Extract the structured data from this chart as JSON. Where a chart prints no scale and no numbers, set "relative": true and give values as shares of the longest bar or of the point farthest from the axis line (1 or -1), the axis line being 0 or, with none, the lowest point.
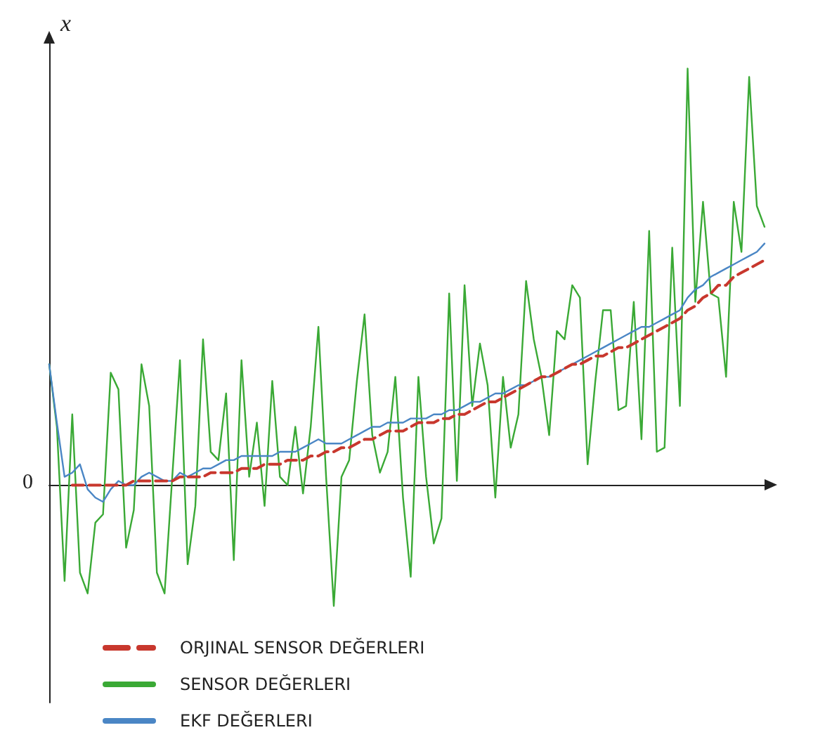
{
  "chart_data": {
    "type": "line",
    "relative": true,
    "ylabel": "x",
    "grid": false,
    "legend": "bottom left",
    "marker": "none",
    "annotations": [
      "0"
    ],
    "categories": [
      null,
      null,
      null,
      null,
      null,
      null,
      null,
      null,
      null,
      null,
      null,
      null,
      null,
      null,
      null,
      null,
      null,
      null,
      null,
      null,
      null,
      null,
      null,
      null,
      null,
      null,
      null,
      null,
      null,
      null,
      null,
      null,
      null,
      null,
      null,
      null,
      null,
      null,
      null,
      null,
      null,
      null,
      null,
      null,
      null,
      null,
      null,
      null,
      null,
      null,
      null,
      null,
      null,
      null,
      null,
      null,
      null,
      null,
      null,
      null,
      null,
      null,
      null,
      null,
      null,
      null,
      null,
      null,
      null,
      null,
      null,
      null,
      null,
      null,
      null,
      null,
      null,
      null,
      null,
      null,
      null,
      null,
      null,
      null,
      null,
      null,
      null,
      null,
      null,
      null,
      null,
      null,
      null,
      null
    ],
    "series": [
      {
        "name": "ORJINAL SENSOR DEĞERLERI",
        "color": "#c8372d",
        "line_style": "dashed",
        "values": [
          null,
          null,
          null,
          0.0,
          0.0,
          0.0,
          0.0,
          0.0,
          0.0,
          0.0,
          0.0,
          0.01,
          0.01,
          0.01,
          0.01,
          0.01,
          0.01,
          0.02,
          0.02,
          0.02,
          0.02,
          0.03,
          0.03,
          0.03,
          0.03,
          0.04,
          0.04,
          0.04,
          0.05,
          0.05,
          0.05,
          0.06,
          0.06,
          0.06,
          0.07,
          0.07,
          0.08,
          0.08,
          0.09,
          0.09,
          0.1,
          0.11,
          0.11,
          0.12,
          0.13,
          0.13,
          0.13,
          0.14,
          0.15,
          0.15,
          0.15,
          0.16,
          0.16,
          0.17,
          0.17,
          0.18,
          0.19,
          0.2,
          0.2,
          0.21,
          0.22,
          0.23,
          0.24,
          0.25,
          0.26,
          0.26,
          0.27,
          0.28,
          0.29,
          0.29,
          0.3,
          0.31,
          0.31,
          0.32,
          0.33,
          0.33,
          0.34,
          0.35,
          0.36,
          0.37,
          0.38,
          0.39,
          0.4,
          0.42,
          0.43,
          0.45,
          0.46,
          0.48,
          0.48,
          0.5,
          0.51,
          0.52,
          0.53,
          0.54
        ]
      },
      {
        "name": "SENSOR DEĞERLERI",
        "color": "#3aa935",
        "line_style": "solid",
        "values": [
          0.29,
          0.14,
          -0.23,
          0.17,
          -0.21,
          -0.26,
          -0.09,
          -0.07,
          0.27,
          0.23,
          -0.15,
          -0.06,
          0.29,
          0.19,
          -0.21,
          -0.26,
          0.02,
          0.3,
          -0.19,
          -0.05,
          0.35,
          0.08,
          0.06,
          0.22,
          -0.18,
          0.3,
          0.02,
          0.15,
          -0.05,
          0.25,
          0.02,
          0.0,
          0.14,
          -0.02,
          0.14,
          0.38,
          0.02,
          -0.29,
          0.02,
          0.06,
          0.25,
          0.41,
          0.12,
          0.03,
          0.08,
          0.26,
          -0.03,
          -0.22,
          0.26,
          0.02,
          -0.14,
          -0.08,
          0.46,
          0.01,
          0.48,
          0.19,
          0.34,
          0.24,
          -0.03,
          0.26,
          0.09,
          0.17,
          0.49,
          0.35,
          0.26,
          0.12,
          0.37,
          0.35,
          0.48,
          0.45,
          0.05,
          0.25,
          0.42,
          0.42,
          0.18,
          0.19,
          0.44,
          0.11,
          0.61,
          0.08,
          0.09,
          0.57,
          0.19,
          1,
          0.44,
          0.68,
          0.46,
          0.45,
          0.26,
          0.68,
          0.56,
          0.98,
          0.67,
          0.62
        ]
      },
      {
        "name": "EKF DEĞERLERI",
        "color": "#4a86c5",
        "line_style": "solid",
        "values": [
          0.29,
          0.15,
          0.02,
          0.03,
          0.05,
          -0.01,
          -0.03,
          -0.04,
          -0.01,
          0.01,
          0.0,
          0.0,
          0.02,
          0.03,
          0.02,
          0.01,
          0.01,
          0.03,
          0.02,
          0.03,
          0.04,
          0.04,
          0.05,
          0.06,
          0.06,
          0.07,
          0.07,
          0.07,
          0.07,
          0.07,
          0.08,
          0.08,
          0.08,
          0.09,
          0.1,
          0.11,
          0.1,
          0.1,
          0.1,
          0.11,
          0.12,
          0.13,
          0.14,
          0.14,
          0.15,
          0.15,
          0.15,
          0.16,
          0.16,
          0.16,
          0.17,
          0.17,
          0.18,
          0.18,
          0.19,
          0.2,
          0.2,
          0.21,
          0.22,
          0.22,
          0.23,
          0.24,
          0.24,
          0.25,
          0.26,
          0.26,
          0.27,
          0.28,
          0.29,
          0.3,
          0.31,
          0.32,
          0.33,
          0.34,
          0.35,
          0.36,
          0.37,
          0.38,
          0.38,
          0.39,
          0.4,
          0.41,
          0.42,
          0.45,
          0.47,
          0.48,
          0.5,
          0.51,
          0.52,
          0.53,
          0.54,
          0.55,
          0.56,
          0.58
        ]
      }
    ]
  }
}
